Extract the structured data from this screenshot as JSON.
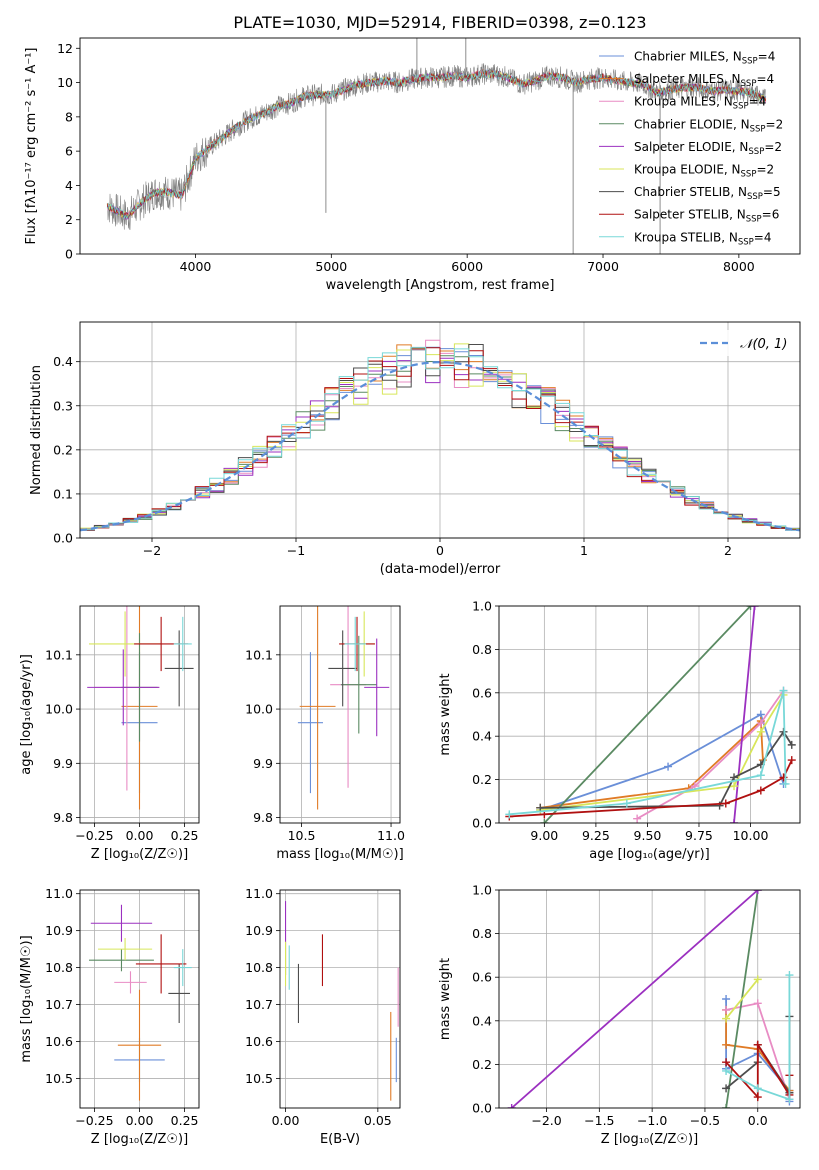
{
  "figure": {
    "title": "PLATE=1030, MJD=52914, FIBERID=0398, z=0.123"
  },
  "palette": {
    "chabrier_miles": "#6a8fd8",
    "salpeter_miles": "#e07b26",
    "kroupa_miles": "#e88cc4",
    "chabrier_elodie": "#5a8a62",
    "salpeter_elodie": "#9b30c0",
    "kroupa_elodie": "#d8e65a",
    "chabrier_stelib": "#4d4d4d",
    "salpeter_stelib": "#b01010",
    "kroupa_stelib": "#78d8d8",
    "data": "#808080",
    "gauss": "#5b8fd8"
  },
  "legend_entries": [
    {
      "model": "Chabrier MILES",
      "nssp": "4",
      "color_key": "chabrier_miles"
    },
    {
      "model": "Salpeter MILES",
      "nssp": "4",
      "color_key": "salpeter_miles"
    },
    {
      "model": "Kroupa MILES",
      "nssp": "4",
      "color_key": "kroupa_miles"
    },
    {
      "model": "Chabrier ELODIE",
      "nssp": "2",
      "color_key": "chabrier_elodie"
    },
    {
      "model": "Salpeter ELODIE",
      "nssp": "2",
      "color_key": "salpeter_elodie"
    },
    {
      "model": "Kroupa ELODIE",
      "nssp": "2",
      "color_key": "kroupa_elodie"
    },
    {
      "model": "Chabrier STELIB",
      "nssp": "5",
      "color_key": "chabrier_stelib"
    },
    {
      "model": "Salpeter STELIB",
      "nssp": "6",
      "color_key": "salpeter_stelib"
    },
    {
      "model": "Kroupa STELIB",
      "nssp": "4",
      "color_key": "kroupa_stelib"
    }
  ],
  "chart_data": [
    {
      "id": "spectrum",
      "type": "line",
      "xlabel": "wavelength [Angstrom, rest frame]",
      "ylabel": "Flux [fλ10⁻¹⁷ erg cm⁻² s⁻¹ A⁻¹]",
      "xlim": [
        3150,
        8450
      ],
      "ylim": [
        0,
        12.6
      ],
      "xticks": [
        4000,
        5000,
        6000,
        7000,
        8000
      ],
      "yticks": [
        0,
        2,
        4,
        6,
        8,
        10,
        12
      ],
      "legend": "top-right",
      "continuum_x": [
        3350,
        3500,
        3600,
        3700,
        3800,
        3900,
        4000,
        4100,
        4200,
        4300,
        4400,
        4500,
        4600,
        4700,
        4800,
        4900,
        5000,
        5100,
        5200,
        5300,
        5400,
        5500,
        5600,
        5700,
        5800,
        5900,
        6000,
        6100,
        6200,
        6300,
        6400,
        6500,
        6600,
        6700,
        6800,
        6900,
        7000,
        7100,
        7200,
        7300,
        7400,
        7500,
        7600,
        7700,
        7800,
        7900,
        8000,
        8100,
        8200
      ],
      "continuum_y": [
        2.8,
        2.2,
        3.0,
        3.6,
        3.6,
        3.4,
        5.6,
        6.2,
        6.8,
        7.4,
        7.9,
        8.2,
        8.6,
        8.8,
        9.2,
        9.3,
        9.3,
        9.6,
        9.9,
        10.0,
        10.1,
        10.0,
        10.2,
        10.3,
        10.3,
        10.4,
        10.3,
        10.5,
        10.5,
        10.3,
        9.9,
        10.1,
        10.4,
        10.3,
        10.0,
        10.2,
        10.3,
        10.1,
        10.0,
        9.9,
        9.4,
        9.6,
        9.7,
        9.7,
        9.5,
        9.6,
        9.5,
        9.4,
        9.0
      ],
      "data_spikes": [
        {
          "x": 4960,
          "y_low": 2.4
        },
        {
          "x": 5630,
          "y_high": 12.6
        },
        {
          "x": 5990,
          "y_high": 12.6
        },
        {
          "x": 6780,
          "y_low": 0.0
        },
        {
          "x": 7420,
          "y_low": 0.0
        }
      ]
    },
    {
      "id": "residuals",
      "type": "histogram",
      "xlabel": "(data-model)/error",
      "ylabel": "Normed distribution",
      "xlim": [
        -2.5,
        2.5
      ],
      "ylim": [
        0,
        0.49
      ],
      "xticks": [
        -2,
        -1,
        0,
        1,
        2
      ],
      "yticks": [
        0.0,
        0.1,
        0.2,
        0.3,
        0.4
      ],
      "legend_label": "𝒩(0, 1)",
      "legend": "top-right",
      "bin_width": 0.1,
      "reference": "standard normal N(0,1)"
    },
    {
      "id": "age_vs_z",
      "type": "scatter",
      "xlabel": "Z [log₁₀(Z/Z☉)]",
      "ylabel": "age  [log₁₀(age/yr)]",
      "xlim": [
        -0.33,
        0.33
      ],
      "ylim": [
        9.79,
        10.19
      ],
      "xticks": [
        -0.25,
        0.0,
        0.25
      ],
      "yticks": [
        9.8,
        9.9,
        10.0,
        10.1
      ],
      "points": [
        {
          "k": "chabrier_miles",
          "x": 0.0,
          "y": 9.975,
          "xerr": 0.1,
          "yerr": 0.13
        },
        {
          "k": "salpeter_miles",
          "x": 0.0,
          "y": 10.005,
          "xerr": 0.1,
          "yerr": 0.19
        },
        {
          "k": "kroupa_miles",
          "x": -0.07,
          "y": 10.04,
          "xerr": 0.18,
          "yerr": 0.19
        },
        {
          "k": "chabrier_elodie",
          "x": 0.0,
          "y": 10.04,
          "xerr": 0.1,
          "yerr": 0.1
        },
        {
          "k": "salpeter_elodie",
          "x": -0.09,
          "y": 10.04,
          "xerr": 0.2,
          "yerr": 0.07
        },
        {
          "k": "kroupa_elodie",
          "x": -0.08,
          "y": 10.12,
          "xerr": 0.2,
          "yerr": 0.06
        },
        {
          "k": "chabrier_stelib",
          "x": 0.22,
          "y": 10.075,
          "xerr": 0.08,
          "yerr": 0.07
        },
        {
          "k": "salpeter_stelib",
          "x": 0.12,
          "y": 10.12,
          "xerr": 0.15,
          "yerr": 0.05
        },
        {
          "k": "kroupa_stelib",
          "x": 0.24,
          "y": 10.12,
          "xerr": 0.05,
          "yerr": 0.05
        }
      ]
    },
    {
      "id": "age_vs_mass",
      "type": "scatter",
      "xlabel": "mass [log₁₀(M/M☉)]",
      "ylabel": "",
      "xlim": [
        10.38,
        11.05
      ],
      "ylim": [
        9.79,
        10.19
      ],
      "xticks": [
        10.5,
        11.0
      ],
      "yticks": [
        9.8,
        9.9,
        10.0,
        10.1
      ],
      "points": [
        {
          "k": "chabrier_miles",
          "x": 10.55,
          "y": 9.975,
          "xerr": 0.07,
          "yerr": 0.13
        },
        {
          "k": "salpeter_miles",
          "x": 10.59,
          "y": 10.005,
          "xerr": 0.1,
          "yerr": 0.19
        },
        {
          "k": "kroupa_miles",
          "x": 10.76,
          "y": 10.045,
          "xerr": 0.1,
          "yerr": 0.19
        },
        {
          "k": "chabrier_elodie",
          "x": 10.82,
          "y": 10.045,
          "xerr": 0.1,
          "yerr": 0.09
        },
        {
          "k": "salpeter_elodie",
          "x": 10.92,
          "y": 10.04,
          "xerr": 0.07,
          "yerr": 0.09
        },
        {
          "k": "kroupa_elodie",
          "x": 10.85,
          "y": 10.12,
          "xerr": 0.06,
          "yerr": 0.06
        },
        {
          "k": "chabrier_stelib",
          "x": 10.73,
          "y": 10.075,
          "xerr": 0.08,
          "yerr": 0.07
        },
        {
          "k": "salpeter_stelib",
          "x": 10.81,
          "y": 10.12,
          "xerr": 0.1,
          "yerr": 0.05
        },
        {
          "k": "kroupa_stelib",
          "x": 10.8,
          "y": 10.12,
          "xerr": 0.06,
          "yerr": 0.05
        }
      ]
    },
    {
      "id": "mass_weight_vs_age",
      "type": "line",
      "xlabel": "age  [log₁₀(age/yr)]",
      "ylabel": "mass weight",
      "xlim": [
        8.78,
        10.24
      ],
      "ylim": [
        0,
        1.0
      ],
      "xticks": [
        9.0,
        9.25,
        9.5,
        9.75,
        10.0
      ],
      "yticks": [
        0.0,
        0.2,
        0.4,
        0.6,
        0.8,
        1.0
      ],
      "series": [
        {
          "k": "chabrier_miles",
          "x": [
            8.98,
            9.6,
            10.05,
            10.16
          ],
          "y": [
            0.06,
            0.26,
            0.5,
            0.18
          ]
        },
        {
          "k": "salpeter_miles",
          "x": [
            8.98,
            9.7,
            10.05,
            10.06
          ],
          "y": [
            0.07,
            0.16,
            0.47,
            0.29
          ]
        },
        {
          "k": "kroupa_miles",
          "x": [
            9.45,
            9.73,
            10.05,
            10.16
          ],
          "y": [
            0.02,
            0.17,
            0.46,
            0.61
          ]
        },
        {
          "k": "chabrier_elodie",
          "x": [
            9.0,
            10.0
          ],
          "y": [
            0.0,
            1.0
          ]
        },
        {
          "k": "salpeter_elodie",
          "x": [
            9.92,
            10.02
          ],
          "y": [
            0.0,
            1.0
          ]
        },
        {
          "k": "kroupa_elodie",
          "x": [
            8.98,
            9.92,
            10.05,
            10.16
          ],
          "y": [
            0.06,
            0.17,
            0.42,
            0.59
          ]
        },
        {
          "k": "chabrier_stelib",
          "x": [
            8.98,
            9.85,
            9.92,
            10.05,
            10.16,
            10.2
          ],
          "y": [
            0.07,
            0.08,
            0.21,
            0.27,
            0.42,
            0.36
          ]
        },
        {
          "k": "salpeter_stelib",
          "x": [
            8.83,
            9.0,
            9.88,
            10.05,
            10.16,
            10.2
          ],
          "y": [
            0.03,
            0.04,
            0.09,
            0.15,
            0.21,
            0.29
          ]
        },
        {
          "k": "kroupa_stelib",
          "x": [
            8.83,
            9.4,
            10.05,
            10.16,
            10.17
          ],
          "y": [
            0.04,
            0.09,
            0.22,
            0.61,
            0.18
          ]
        }
      ]
    },
    {
      "id": "mass_vs_z",
      "type": "scatter",
      "xlabel": "Z [log₁₀(Z/Z☉)]",
      "ylabel": "mass [log₁₀(M/M☉)]",
      "xlim": [
        -0.33,
        0.33
      ],
      "ylim": [
        10.42,
        11.01
      ],
      "xticks": [
        -0.25,
        0.0,
        0.25
      ],
      "yticks": [
        10.5,
        10.6,
        10.7,
        10.8,
        10.9,
        11.0
      ],
      "points": [
        {
          "k": "chabrier_miles",
          "x": 0.0,
          "y": 10.55,
          "xerr": 0.14,
          "yerr": 0.06
        },
        {
          "k": "salpeter_miles",
          "x": 0.0,
          "y": 10.59,
          "xerr": 0.12,
          "yerr": 0.15
        },
        {
          "k": "kroupa_miles",
          "x": -0.05,
          "y": 10.76,
          "xerr": 0.09,
          "yerr": 0.03
        },
        {
          "k": "chabrier_elodie",
          "x": -0.1,
          "y": 10.82,
          "xerr": 0.18,
          "yerr": 0.03
        },
        {
          "k": "salpeter_elodie",
          "x": -0.1,
          "y": 10.92,
          "xerr": 0.17,
          "yerr": 0.05
        },
        {
          "k": "kroupa_elodie",
          "x": -0.08,
          "y": 10.85,
          "xerr": 0.15,
          "yerr": 0.03
        },
        {
          "k": "chabrier_stelib",
          "x": 0.22,
          "y": 10.73,
          "xerr": 0.06,
          "yerr": 0.08
        },
        {
          "k": "salpeter_stelib",
          "x": 0.12,
          "y": 10.81,
          "xerr": 0.14,
          "yerr": 0.08
        },
        {
          "k": "kroupa_stelib",
          "x": 0.24,
          "y": 10.8,
          "xerr": 0.05,
          "yerr": 0.05
        }
      ]
    },
    {
      "id": "mass_vs_ebv",
      "type": "scatter",
      "xlabel": "E(B-V)",
      "ylabel": "",
      "xlim": [
        -0.003,
        0.062
      ],
      "ylim": [
        10.42,
        11.01
      ],
      "xticks": [
        0.0,
        0.05
      ],
      "yticks": [
        10.5,
        10.6,
        10.7,
        10.8,
        10.9,
        11.0
      ],
      "points": [
        {
          "k": "chabrier_miles",
          "x": 0.06,
          "y": 10.55,
          "yerr": 0.06
        },
        {
          "k": "salpeter_miles",
          "x": 0.057,
          "y": 10.56,
          "yerr": 0.12
        },
        {
          "k": "kroupa_miles",
          "x": 0.061,
          "y": 10.72,
          "yerr": 0.08
        },
        {
          "k": "chabrier_elodie",
          "x": 0.0,
          "y": 10.82,
          "yerr": 0.04
        },
        {
          "k": "salpeter_elodie",
          "x": 0.0,
          "y": 10.92,
          "yerr": 0.06
        },
        {
          "k": "kroupa_elodie",
          "x": 0.0,
          "y": 10.81,
          "yerr": 0.06
        },
        {
          "k": "chabrier_stelib",
          "x": 0.007,
          "y": 10.73,
          "yerr": 0.08
        },
        {
          "k": "salpeter_stelib",
          "x": 0.02,
          "y": 10.82,
          "yerr": 0.07
        },
        {
          "k": "kroupa_stelib",
          "x": 0.002,
          "y": 10.8,
          "yerr": 0.06
        }
      ]
    },
    {
      "id": "mass_weight_vs_z",
      "type": "line",
      "xlabel": "Z [log₁₀(Z/Z☉)]",
      "ylabel": "mass weight",
      "xlim": [
        -2.45,
        0.4
      ],
      "ylim": [
        0,
        1.0
      ],
      "xticks": [
        -2.0,
        -1.5,
        -1.0,
        -0.5,
        0.0
      ],
      "yticks": [
        0.0,
        0.2,
        0.4,
        0.6,
        0.8,
        1.0
      ],
      "series": [
        {
          "k": "chabrier_miles",
          "x": [
            -0.3,
            -0.3,
            0.0,
            0.3,
            0.3
          ],
          "y": [
            0.5,
            0.18,
            0.25,
            0.08,
            0.03
          ]
        },
        {
          "k": "salpeter_miles",
          "x": [
            -0.3,
            -0.3,
            0.0,
            0.3
          ],
          "y": [
            0.45,
            0.29,
            0.27,
            0.08
          ]
        },
        {
          "k": "kroupa_miles",
          "x": [
            -0.3,
            0.0,
            0.3
          ],
          "y": [
            0.45,
            0.48,
            0.04
          ]
        },
        {
          "k": "chabrier_elodie",
          "x": [
            -0.3,
            0.0
          ],
          "y": [
            0.0,
            1.0
          ]
        },
        {
          "k": "salpeter_elodie",
          "x": [
            -2.33,
            0.0
          ],
          "y": [
            0.0,
            1.0
          ]
        },
        {
          "k": "kroupa_elodie",
          "x": [
            -0.3,
            0.0
          ],
          "y": [
            0.41,
            0.59
          ]
        },
        {
          "k": "chabrier_stelib",
          "x": [
            -0.3,
            0.0,
            0.0,
            0.3,
            0.3
          ],
          "y": [
            0.09,
            0.21,
            0.29,
            0.07,
            0.42
          ]
        },
        {
          "k": "salpeter_stelib",
          "x": [
            -0.3,
            0.0,
            0.0,
            0.3,
            0.3
          ],
          "y": [
            0.21,
            0.05,
            0.29,
            0.06,
            0.15
          ]
        },
        {
          "k": "kroupa_stelib",
          "x": [
            -0.3,
            0.0,
            0.3,
            0.3
          ],
          "y": [
            0.17,
            0.09,
            0.04,
            0.61
          ]
        }
      ]
    }
  ]
}
